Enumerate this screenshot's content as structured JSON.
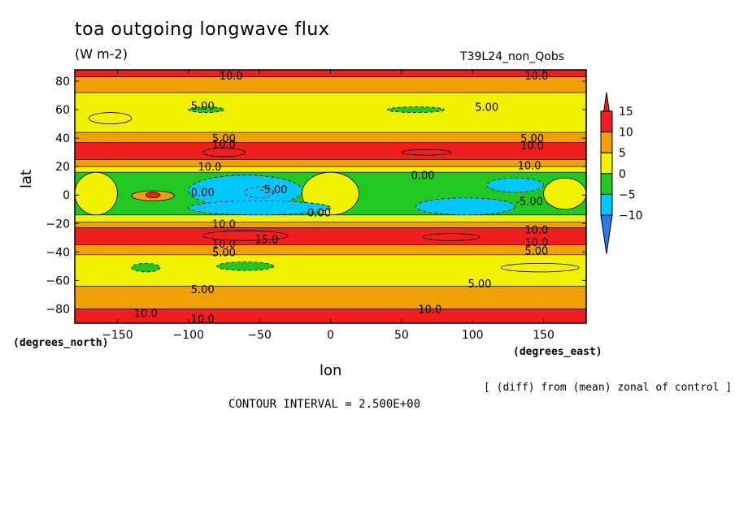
{
  "chart_data": {
    "type": "heatmap",
    "title": "toa outgoing longwave flux",
    "units": "(W m-2)",
    "run_label": "T39L24_non_Qobs",
    "xlabel": "lon",
    "ylabel": "lat",
    "x_unit_label": "(degrees_east)",
    "y_unit_label": "(degrees_north)",
    "note": "[ (diff) from (mean) zonal of control ]",
    "contour_interval_text": "CONTOUR INTERVAL = 2.500E+00",
    "xlim": [
      -180,
      180
    ],
    "ylim": [
      -90,
      88
    ],
    "x_ticks": [
      -150,
      -100,
      -50,
      0,
      50,
      100,
      150
    ],
    "y_ticks": [
      -80,
      -60,
      -40,
      -20,
      0,
      20,
      40,
      60,
      80
    ],
    "colorbar": {
      "labels": [
        15,
        10,
        5,
        0,
        -5,
        -10
      ],
      "levels": [
        -12.5,
        -10,
        -5,
        0,
        5,
        10,
        15,
        17.5
      ],
      "colors": [
        "#2a7ae2",
        "#00c8ff",
        "#22c822",
        "#f2f200",
        "#f0a000",
        "#f01e1e"
      ]
    },
    "lat_bands": [
      {
        "lat_from": 88,
        "lat_to": 83,
        "value": 10
      },
      {
        "lat_from": 83,
        "lat_to": 72,
        "value": 6
      },
      {
        "lat_from": 72,
        "lat_to": 44,
        "value": 2
      },
      {
        "lat_from": 44,
        "lat_to": 37,
        "value": 6
      },
      {
        "lat_from": 37,
        "lat_to": 25,
        "value": 11
      },
      {
        "lat_from": 25,
        "lat_to": 20,
        "value": 6
      },
      {
        "lat_from": 20,
        "lat_to": 16,
        "value": 2
      },
      {
        "lat_from": 16,
        "lat_to": -14,
        "value": -3
      },
      {
        "lat_from": -14,
        "lat_to": -19,
        "value": 2
      },
      {
        "lat_from": -19,
        "lat_to": -23,
        "value": 6
      },
      {
        "lat_from": -23,
        "lat_to": -35,
        "value": 11
      },
      {
        "lat_from": -35,
        "lat_to": -42,
        "value": 6
      },
      {
        "lat_from": -42,
        "lat_to": -64,
        "value": 2
      },
      {
        "lat_from": -64,
        "lat_to": -80,
        "value": 6
      },
      {
        "lat_from": -80,
        "lat_to": -90,
        "value": 10
      }
    ],
    "patches": [
      {
        "lon": [
          -180,
          -150
        ],
        "lat": [
          16,
          -14
        ],
        "value": 2
      },
      {
        "lon": [
          -20,
          20
        ],
        "lat": [
          16,
          -14
        ],
        "value": 2
      },
      {
        "lon": [
          150,
          180
        ],
        "lat": [
          12,
          -10
        ],
        "value": 2
      },
      {
        "lon": [
          -140,
          -110
        ],
        "lat": [
          3,
          -4
        ],
        "value": 8
      },
      {
        "lon": [
          -130,
          -120
        ],
        "lat": [
          2,
          -2
        ],
        "value": 11
      },
      {
        "lon": [
          -100,
          -20
        ],
        "lat": [
          14,
          -8
        ],
        "value": -6
      },
      {
        "lon": [
          -100,
          0
        ],
        "lat": [
          -4,
          -14
        ],
        "value": -6
      },
      {
        "lon": [
          -60,
          -40
        ],
        "lat": [
          6,
          -2
        ],
        "value": -9
      },
      {
        "lon": [
          60,
          130
        ],
        "lat": [
          -2,
          -14
        ],
        "value": -6
      },
      {
        "lon": [
          110,
          150
        ],
        "lat": [
          12,
          2
        ],
        "value": -6
      },
      {
        "lon": [
          -90,
          -60
        ],
        "lat": [
          33,
          27
        ],
        "value": 16
      },
      {
        "lon": [
          50,
          85
        ],
        "lat": [
          32,
          28
        ],
        "value": 16
      },
      {
        "lon": [
          -90,
          -30
        ],
        "lat": [
          -25,
          -32
        ],
        "value": 16
      },
      {
        "lon": [
          65,
          105
        ],
        "lat": [
          -27,
          -32
        ],
        "value": 16
      },
      {
        "lon": [
          -140,
          -120
        ],
        "lat": [
          -48,
          -54
        ],
        "value": -3
      },
      {
        "lon": [
          -80,
          -40
        ],
        "lat": [
          -47,
          -53
        ],
        "value": -3
      },
      {
        "lon": [
          -100,
          -75
        ],
        "lat": [
          62,
          58
        ],
        "value": -3
      },
      {
        "lon": [
          40,
          80
        ],
        "lat": [
          62,
          58
        ],
        "value": -3
      },
      {
        "lon": [
          120,
          175
        ],
        "lat": [
          -48,
          -54
        ],
        "value": 2
      },
      {
        "lon": [
          -170,
          -140
        ],
        "lat": [
          58,
          50
        ],
        "value": 2
      }
    ],
    "contour_labels": [
      {
        "text": "10.0",
        "lon": -70,
        "lat": 84
      },
      {
        "text": "10.0",
        "lon": 145,
        "lat": 84
      },
      {
        "text": "5.00",
        "lon": -90,
        "lat": 63
      },
      {
        "text": "5.00",
        "lon": 110,
        "lat": 62
      },
      {
        "text": "5.00",
        "lon": -75,
        "lat": 40
      },
      {
        "text": "10.0",
        "lon": -75,
        "lat": 36
      },
      {
        "text": "5.00",
        "lon": 142,
        "lat": 40
      },
      {
        "text": "10.0",
        "lon": 142,
        "lat": 35
      },
      {
        "text": "10.0",
        "lon": -85,
        "lat": 20
      },
      {
        "text": "10.0",
        "lon": 140,
        "lat": 21
      },
      {
        "text": "0.00",
        "lon": 65,
        "lat": 14
      },
      {
        "text": "0.00",
        "lon": -90,
        "lat": 2
      },
      {
        "text": "-5.00",
        "lon": -40,
        "lat": 4
      },
      {
        "text": "0.00",
        "lon": -8,
        "lat": -12
      },
      {
        "text": "-5.00",
        "lon": 140,
        "lat": -4
      },
      {
        "text": "10.0",
        "lon": -75,
        "lat": -20
      },
      {
        "text": "10.0",
        "lon": -75,
        "lat": -34
      },
      {
        "text": "15.0",
        "lon": -45,
        "lat": -31
      },
      {
        "text": "5.00",
        "lon": -75,
        "lat": -40
      },
      {
        "text": "10.0",
        "lon": 145,
        "lat": -24
      },
      {
        "text": "10.0",
        "lon": 145,
        "lat": -33
      },
      {
        "text": "5.00",
        "lon": 145,
        "lat": -39
      },
      {
        "text": "5.00",
        "lon": -90,
        "lat": -66
      },
      {
        "text": "5.00",
        "lon": 105,
        "lat": -62
      },
      {
        "text": "10.0",
        "lon": -130,
        "lat": -83
      },
      {
        "text": "10.0",
        "lon": 70,
        "lat": -80
      },
      {
        "text": "10.0",
        "lon": -90,
        "lat": -87
      }
    ]
  }
}
